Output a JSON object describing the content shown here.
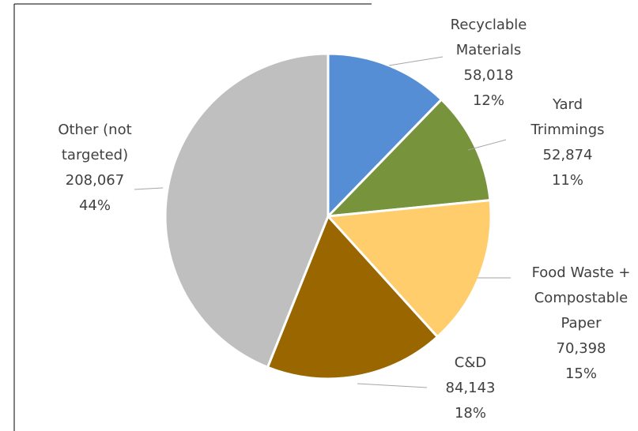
{
  "chart_data": {
    "type": "pie",
    "categories": [
      "Recyclable Materials",
      "Yard Trimmings",
      "Food Waste + Compostable Paper",
      "C&D",
      "Other (not targeted)"
    ],
    "values": [
      58018,
      52874,
      70398,
      84143,
      208067
    ],
    "value_labels": [
      "58,018",
      "52,874",
      "70,398",
      "84,143",
      "208,067"
    ],
    "percent_labels": [
      "12%",
      "11%",
      "15%",
      "18%",
      "44%"
    ],
    "colors": [
      "#558ed5",
      "#77933c",
      "#ffcd6c",
      "#996600",
      "#bfbfbf"
    ]
  }
}
